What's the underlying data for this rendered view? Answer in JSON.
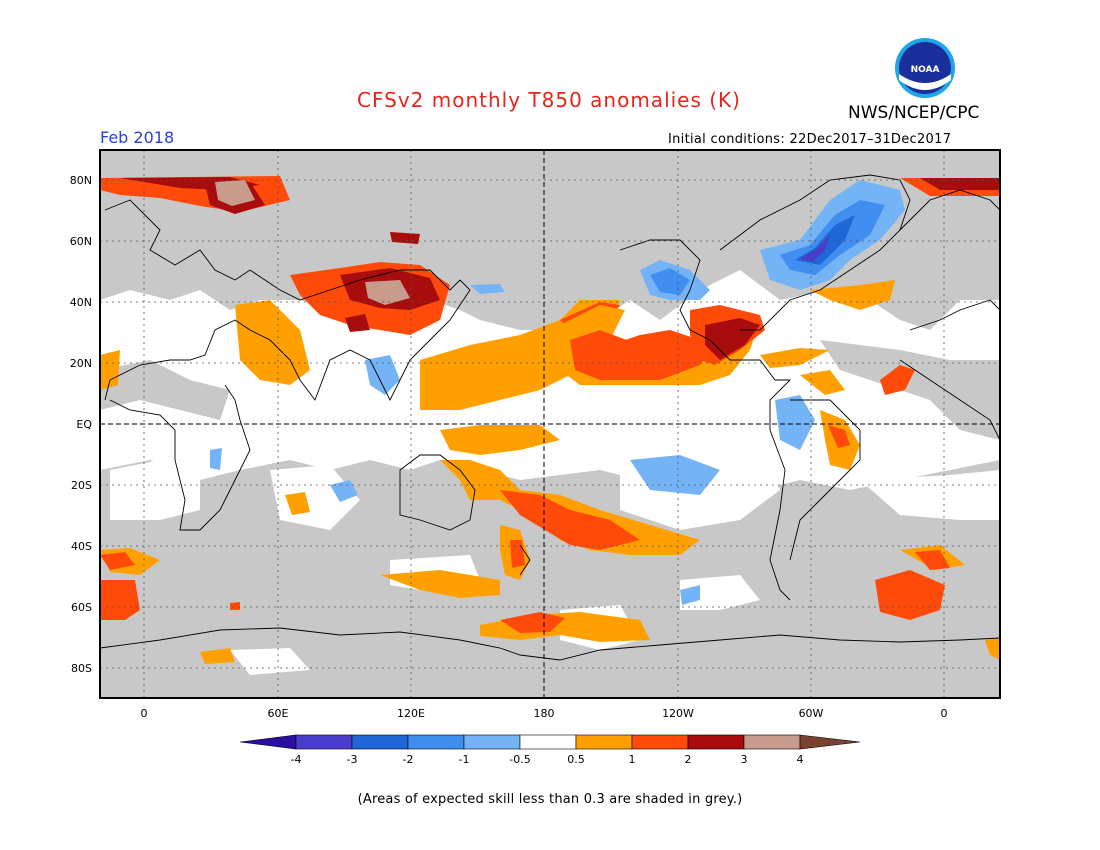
{
  "header": {
    "title": "CFSv2 monthly T850 anomalies (K)",
    "agency": "NWS/NCEP/CPC",
    "logo_text": "NOAA",
    "period": "Feb 2018",
    "initial_conditions": "Initial conditions: 22Dec2017–31Dec2017"
  },
  "map": {
    "lat_labels": [
      "80N",
      "60N",
      "40N",
      "20N",
      "EQ",
      "20S",
      "40S",
      "60S",
      "80S"
    ],
    "lon_labels": [
      "0",
      "60E",
      "120E",
      "180",
      "120W",
      "60W",
      "0"
    ],
    "skill_mask_color": "#c8c8c8"
  },
  "colorbar": {
    "labels": [
      "-4",
      "-3",
      "-2",
      "-1",
      "-0.5",
      "0.5",
      "1",
      "2",
      "3",
      "4"
    ],
    "colors": [
      "#2b0fa3",
      "#4a3ccc",
      "#1f66d6",
      "#3f8ef0",
      "#74b4f6",
      "#ffffff",
      "#ffa000",
      "#ff4a0a",
      "#a80c0c",
      "#c89c8c",
      "#7a4030"
    ]
  },
  "footnote": "(Areas of expected skill less than 0.3 are shaded in grey.)"
}
